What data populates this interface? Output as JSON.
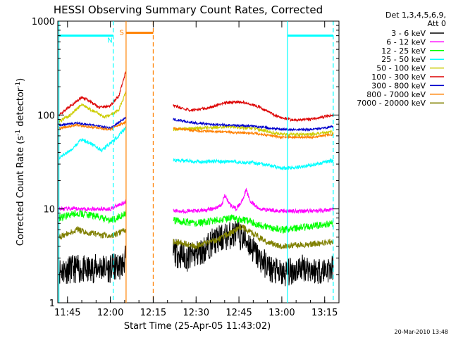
{
  "chart_data": {
    "type": "line",
    "title": "HESSI Observing Summary Count Rates, Corrected",
    "xlabel": "Start Time (25-Apr-05 11:43:02)",
    "ylabel_parts": [
      "Corrected Count Rate (s",
      "-1",
      " detector",
      "-1",
      ")"
    ],
    "y_scale": "log",
    "ylim": [
      1,
      1000
    ],
    "xlim_minutes": [
      -18.4,
      80
    ],
    "x_ticks": [
      {
        "label": "11:45",
        "t": -15
      },
      {
        "label": "12:00",
        "t": 0
      },
      {
        "label": "12:15",
        "t": 15
      },
      {
        "label": "12:30",
        "t": 30
      },
      {
        "label": "12:45",
        "t": 45
      },
      {
        "label": "13:00",
        "t": 60
      },
      {
        "label": "13:15",
        "t": 75
      }
    ],
    "y_ticks": [
      {
        "label": "1",
        "v": 1
      },
      {
        "label": "10",
        "v": 10
      },
      {
        "label": "100",
        "v": 100
      },
      {
        "label": "1000",
        "v": 1000
      }
    ],
    "legend_header": [
      "Det 1,3,4,5,6,9,",
      "Att 0"
    ],
    "legend_position": "right",
    "series": [
      {
        "name": "3 - 6 keV",
        "color": "#000000"
      },
      {
        "name": "6 - 12 keV",
        "color": "#ff00ff"
      },
      {
        "name": "12 - 25 keV",
        "color": "#00ff00"
      },
      {
        "name": "25 - 50 keV",
        "color": "#00ffff"
      },
      {
        "name": "50 - 100 keV",
        "color": "#cccc00"
      },
      {
        "name": "100 - 300 keV",
        "color": "#dd0000"
      },
      {
        "name": "300 - 800 keV",
        "color": "#0000cc"
      },
      {
        "name": "800 - 7000 keV",
        "color": "#ff8000"
      },
      {
        "name": "7000 - 20000 keV",
        "color": "#808000"
      }
    ],
    "segments": [
      {
        "t0": -18,
        "t1": 5.5
      },
      {
        "t0": 22,
        "t1": 78
      }
    ],
    "series_values": [
      [
        [
          -18,
          2.2
        ],
        [
          -12,
          2.3
        ],
        [
          -8,
          2.2
        ],
        [
          -4,
          2.4
        ],
        [
          0,
          2.3
        ],
        [
          4,
          2.5
        ],
        [
          5.5,
          3
        ],
        [
          22,
          3.5
        ],
        [
          27,
          3
        ],
        [
          32,
          3.5
        ],
        [
          36,
          4.5
        ],
        [
          40,
          5
        ],
        [
          44,
          5.5
        ],
        [
          48,
          4.5
        ],
        [
          52,
          3
        ],
        [
          56,
          2.3
        ],
        [
          60,
          2
        ],
        [
          64,
          2.2
        ],
        [
          68,
          2.4
        ],
        [
          72,
          2.2
        ],
        [
          78,
          2.3
        ]
      ],
      [
        [
          -18,
          10
        ],
        [
          -12,
          10
        ],
        [
          -6,
          10
        ],
        [
          0,
          10
        ],
        [
          5.5,
          12
        ],
        [
          22,
          9.5
        ],
        [
          30,
          9.5
        ],
        [
          36,
          10
        ],
        [
          39,
          11
        ],
        [
          40,
          14
        ],
        [
          42,
          11
        ],
        [
          44,
          10
        ],
        [
          46,
          12
        ],
        [
          47.5,
          16
        ],
        [
          49,
          12
        ],
        [
          52,
          10
        ],
        [
          60,
          9.5
        ],
        [
          70,
          9.5
        ],
        [
          78,
          9.8
        ]
      ],
      [
        [
          -18,
          8
        ],
        [
          -12,
          9
        ],
        [
          -6,
          8.5
        ],
        [
          0,
          7.5
        ],
        [
          5.5,
          9
        ],
        [
          22,
          7.5
        ],
        [
          30,
          7
        ],
        [
          36,
          7.5
        ],
        [
          42,
          8
        ],
        [
          48,
          7.5
        ],
        [
          54,
          6.5
        ],
        [
          60,
          6
        ],
        [
          70,
          6.5
        ],
        [
          78,
          7
        ]
      ],
      [
        [
          -18,
          35
        ],
        [
          -14,
          42
        ],
        [
          -10,
          55
        ],
        [
          -6,
          48
        ],
        [
          -3,
          42
        ],
        [
          0,
          50
        ],
        [
          3,
          60
        ],
        [
          5.5,
          75
        ],
        [
          22,
          33
        ],
        [
          30,
          32
        ],
        [
          40,
          32
        ],
        [
          50,
          31
        ],
        [
          56,
          29
        ],
        [
          60,
          27
        ],
        [
          66,
          28
        ],
        [
          72,
          30
        ],
        [
          78,
          33
        ]
      ],
      [
        [
          -18,
          85
        ],
        [
          -14,
          100
        ],
        [
          -10,
          130
        ],
        [
          -6,
          110
        ],
        [
          -2,
          95
        ],
        [
          0,
          100
        ],
        [
          3,
          115
        ],
        [
          5.5,
          180
        ],
        [
          22,
          70
        ],
        [
          30,
          72
        ],
        [
          40,
          75
        ],
        [
          50,
          72
        ],
        [
          60,
          62
        ],
        [
          70,
          62
        ],
        [
          78,
          66
        ]
      ],
      [
        [
          -18,
          100
        ],
        [
          -14,
          125
        ],
        [
          -10,
          155
        ],
        [
          -7,
          140
        ],
        [
          -4,
          120
        ],
        [
          0,
          125
        ],
        [
          3,
          160
        ],
        [
          5.5,
          300
        ],
        [
          22,
          125
        ],
        [
          28,
          112
        ],
        [
          34,
          118
        ],
        [
          40,
          135
        ],
        [
          46,
          138
        ],
        [
          52,
          122
        ],
        [
          58,
          98
        ],
        [
          64,
          88
        ],
        [
          70,
          90
        ],
        [
          78,
          100
        ]
      ],
      [
        [
          -18,
          78
        ],
        [
          -12,
          82
        ],
        [
          -6,
          78
        ],
        [
          0,
          72
        ],
        [
          5.5,
          95
        ],
        [
          22,
          90
        ],
        [
          30,
          82
        ],
        [
          40,
          78
        ],
        [
          50,
          76
        ],
        [
          60,
          70
        ],
        [
          70,
          70
        ],
        [
          78,
          75
        ]
      ],
      [
        [
          -18,
          72
        ],
        [
          -12,
          78
        ],
        [
          -6,
          74
        ],
        [
          0,
          70
        ],
        [
          5.5,
          85
        ],
        [
          22,
          72
        ],
        [
          30,
          68
        ],
        [
          40,
          66
        ],
        [
          50,
          64
        ],
        [
          60,
          58
        ],
        [
          70,
          58
        ],
        [
          78,
          62
        ]
      ],
      [
        [
          -18,
          5
        ],
        [
          -12,
          6
        ],
        [
          -6,
          5.5
        ],
        [
          0,
          5
        ],
        [
          5.5,
          6
        ],
        [
          22,
          4.5
        ],
        [
          30,
          4
        ],
        [
          36,
          4.5
        ],
        [
          42,
          5.5
        ],
        [
          46,
          6.5
        ],
        [
          50,
          5.5
        ],
        [
          54,
          4.5
        ],
        [
          60,
          4
        ],
        [
          70,
          4.2
        ],
        [
          78,
          4.5
        ]
      ]
    ],
    "markers": [
      {
        "type": "line",
        "t": -18,
        "color": "#00ffff",
        "dash": false
      },
      {
        "type": "line",
        "t": 1,
        "color": "#00ffff",
        "dash": true
      },
      {
        "type": "line",
        "t": 5.5,
        "color": "#ff8000",
        "dash": false
      },
      {
        "type": "line",
        "t": 15,
        "color": "#ff8000",
        "dash": true
      },
      {
        "type": "line",
        "t": 62,
        "color": "#00ffff",
        "dash": false
      },
      {
        "type": "line",
        "t": 78,
        "color": "#00ffff",
        "dash": true
      }
    ],
    "bars": [
      {
        "t0": -18,
        "t1": 1,
        "v": 700,
        "color": "#00ffff"
      },
      {
        "t0": 5.5,
        "t1": 15,
        "v": 750,
        "color": "#ff8000"
      },
      {
        "t0": 62,
        "t1": 78,
        "v": 700,
        "color": "#00ffff"
      }
    ],
    "flags": [
      {
        "label": "N",
        "t": 1.5,
        "v": 700,
        "color": "#00ffff"
      },
      {
        "label": "S",
        "t": 5.5,
        "v": 850,
        "color": "#ff8000"
      }
    ]
  },
  "footer": {
    "timestamp": "20-Mar-2010 13:48"
  }
}
